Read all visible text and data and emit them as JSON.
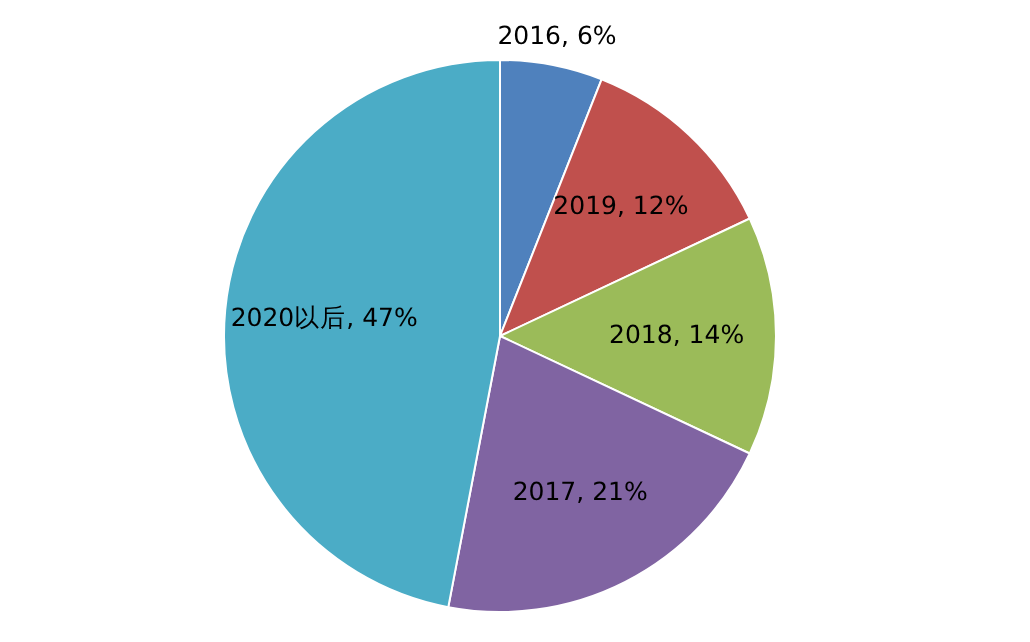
{
  "chart_data": {
    "type": "pie",
    "categories": [
      "2016",
      "2019",
      "2018",
      "2017",
      "2020以后"
    ],
    "values": [
      6,
      12,
      14,
      21,
      47
    ],
    "colors": [
      "#4f81bd",
      "#c0504d",
      "#9bbb59",
      "#8064a2",
      "#4bacc6"
    ],
    "value_labels": [
      "6%",
      "12%",
      "14%",
      "21%",
      "47%"
    ]
  }
}
